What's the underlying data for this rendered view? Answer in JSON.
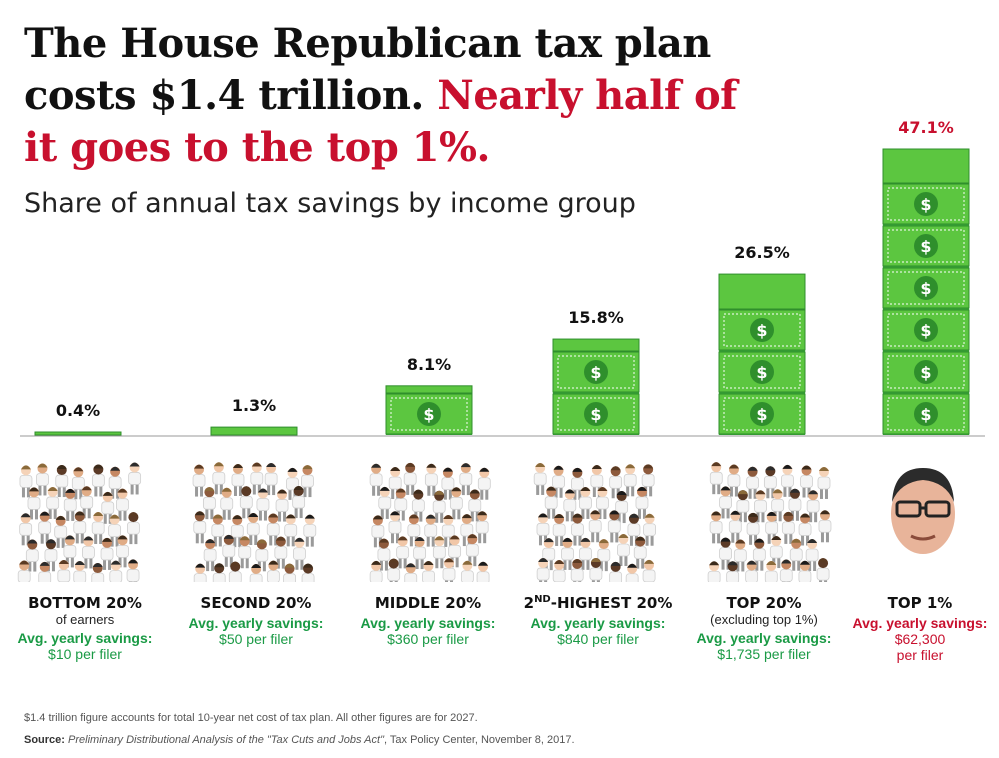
{
  "headline": {
    "part1": "The House Republican tax plan costs $1.4 trillion. ",
    "part2": "Nearly half of it goes to the top 1%."
  },
  "chart_data": {
    "type": "bar",
    "title": "Share of annual tax savings by income group",
    "categories": [
      "BOTTOM 20%",
      "SECOND 20%",
      "MIDDLE 20%",
      "2ND-HIGHEST 20%",
      "TOP 20%",
      "TOP 1%"
    ],
    "values": [
      0.4,
      1.3,
      8.1,
      15.8,
      26.5,
      47.1
    ],
    "value_labels": [
      "0.4%",
      "1.3%",
      "8.1%",
      "15.8%",
      "26.5%",
      "47.1%"
    ],
    "ylim": [
      0,
      47.1
    ],
    "grid": false,
    "bar_color": "#5cc640",
    "highlight_color": "#c8102e"
  },
  "groups": [
    {
      "name": "BOTTOM 20%",
      "sub": "of earners",
      "avg_label": "Avg. yearly savings:",
      "value": "$10 per filer",
      "value2": ""
    },
    {
      "name": "SECOND 20%",
      "sub": "",
      "avg_label": "Avg. yearly savings:",
      "value": "$50 per filer",
      "value2": ""
    },
    {
      "name": "MIDDLE 20%",
      "sub": "",
      "avg_label": "Avg. yearly savings:",
      "value": "$360 per filer",
      "value2": ""
    },
    {
      "name_main": "2",
      "name_sup": "ND",
      "name_rest": "-HIGHEST 20%",
      "sub": "",
      "avg_label": "Avg. yearly savings:",
      "value": "$840 per filer",
      "value2": ""
    },
    {
      "name": "TOP 20%",
      "sub": "(excluding top 1%)",
      "avg_label": "Avg. yearly savings:",
      "value": "$1,735 per filer",
      "value2": ""
    },
    {
      "name": "TOP 1%",
      "sub": "",
      "avg_label": "Avg. yearly savings:",
      "value": "$62,300",
      "value2": "per filer"
    }
  ],
  "dollar_symbol": "$",
  "footnote": "$1.4 trillion figure accounts for total 10-year net cost of tax plan. All other figures are for 2027.",
  "source": {
    "label": "Source:",
    "title": "Preliminary Distributional Analysis of the \"Tax Cuts and Jobs Act\"",
    "rest": ", Tax Policy Center, November 8, 2017."
  },
  "icons": {
    "crowd": "people-crowd-icon",
    "face": "portrait-icon"
  }
}
